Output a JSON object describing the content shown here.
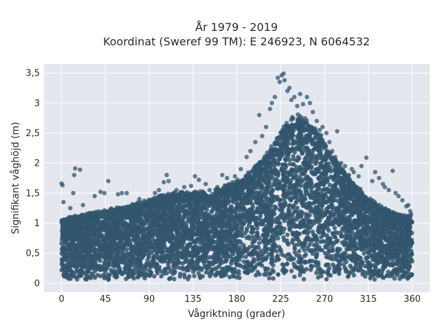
{
  "chart_data": {
    "type": "scatter",
    "title": "År 1979 - 2019",
    "subtitle": "Koordinat (Sweref 99 TM): E 246923, N 6064532",
    "xlabel": "Vågriktning (grader)",
    "ylabel": "Signifikant våghöjd (m)",
    "xlim": [
      -18,
      378
    ],
    "ylim": [
      -0.15,
      3.65
    ],
    "xticks": [
      0,
      45,
      90,
      135,
      180,
      225,
      270,
      315,
      360
    ],
    "xtick_labels": [
      "0",
      "45",
      "90",
      "135",
      "180",
      "225",
      "270",
      "315",
      "360"
    ],
    "yticks": [
      0,
      0.5,
      1,
      1.5,
      2,
      2.5,
      3,
      3.5
    ],
    "ytick_labels": [
      "0",
      "0,5",
      "1",
      "1,5",
      "2",
      "2,5",
      "3",
      "3,5"
    ],
    "grid": true,
    "background": "#e5e7ef",
    "marker_color": "#32566d",
    "envelope": {
      "direction": [
        0,
        15,
        30,
        45,
        60,
        75,
        90,
        105,
        120,
        135,
        150,
        165,
        180,
        195,
        210,
        225,
        240,
        255,
        270,
        285,
        300,
        315,
        330,
        345,
        360
      ],
      "max_height": [
        1.05,
        1.1,
        1.15,
        1.2,
        1.25,
        1.3,
        1.38,
        1.45,
        1.5,
        1.5,
        1.5,
        1.58,
        1.68,
        1.85,
        2.1,
        2.5,
        2.78,
        2.65,
        2.35,
        1.95,
        1.65,
        1.4,
        1.25,
        1.15,
        1.1
      ]
    },
    "outliers": [
      [
        0,
        1.66
      ],
      [
        1,
        1.63
      ],
      [
        2,
        1.35
      ],
      [
        14,
        1.91
      ],
      [
        19,
        1.89
      ],
      [
        13,
        1.8
      ],
      [
        12,
        1.5
      ],
      [
        9,
        1.25
      ],
      [
        22,
        1.3
      ],
      [
        34,
        1.45
      ],
      [
        40,
        1.52
      ],
      [
        44,
        1.5
      ],
      [
        48,
        1.7
      ],
      [
        58,
        1.48
      ],
      [
        62,
        1.5
      ],
      [
        67,
        1.5
      ],
      [
        80,
        1.4
      ],
      [
        96,
        1.5
      ],
      [
        100,
        1.55
      ],
      [
        105,
        1.68
      ],
      [
        108,
        1.8
      ],
      [
        110,
        1.7
      ],
      [
        118,
        1.55
      ],
      [
        126,
        1.6
      ],
      [
        133,
        1.62
      ],
      [
        137,
        1.78
      ],
      [
        141,
        1.72
      ],
      [
        148,
        1.65
      ],
      [
        152,
        1.55
      ],
      [
        160,
        1.6
      ],
      [
        165,
        1.8
      ],
      [
        170,
        1.75
      ],
      [
        178,
        1.78
      ],
      [
        184,
        1.9
      ],
      [
        190,
        2.1
      ],
      [
        194,
        2.2
      ],
      [
        199,
        2.35
      ],
      [
        203,
        2.8
      ],
      [
        206,
        2.45
      ],
      [
        210,
        2.6
      ],
      [
        214,
        2.9
      ],
      [
        216,
        3.0
      ],
      [
        219,
        3.1
      ],
      [
        222,
        3.42
      ],
      [
        224,
        3.35
      ],
      [
        226,
        3.46
      ],
      [
        228,
        3.49
      ],
      [
        229,
        3.38
      ],
      [
        232,
        3.2
      ],
      [
        234,
        3.25
      ],
      [
        236,
        3.05
      ],
      [
        239,
        3.1
      ],
      [
        242,
        2.95
      ],
      [
        245,
        3.15
      ],
      [
        248,
        2.98
      ],
      [
        252,
        3.1
      ],
      [
        255,
        3.0
      ],
      [
        258,
        2.85
      ],
      [
        262,
        2.7
      ],
      [
        265,
        2.55
      ],
      [
        268,
        2.6
      ],
      [
        272,
        2.5
      ],
      [
        275,
        2.35
      ],
      [
        278,
        2.2
      ],
      [
        281,
        2.1
      ],
      [
        283,
        2.53
      ],
      [
        287,
        2.0
      ],
      [
        291,
        1.95
      ],
      [
        295,
        1.8
      ],
      [
        298,
        1.9
      ],
      [
        300,
        1.85
      ],
      [
        305,
        1.78
      ],
      [
        308,
        1.95
      ],
      [
        313,
        2.09
      ],
      [
        319,
        1.7
      ],
      [
        322,
        1.85
      ],
      [
        326,
        1.75
      ],
      [
        330,
        1.65
      ],
      [
        332,
        1.6
      ],
      [
        336,
        1.55
      ],
      [
        340,
        1.87
      ],
      [
        343,
        1.5
      ],
      [
        346,
        1.45
      ],
      [
        350,
        1.38
      ],
      [
        354,
        1.28
      ],
      [
        356,
        1.3
      ],
      [
        358,
        1.2
      ],
      [
        359,
        1.15
      ]
    ]
  }
}
